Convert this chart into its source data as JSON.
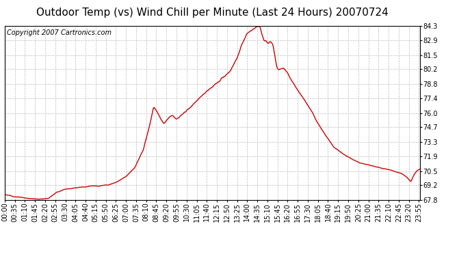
{
  "title": "Outdoor Temp (vs) Wind Chill per Minute (Last 24 Hours) 20070724",
  "copyright": "Copyright 2007 Cartronics.com",
  "line_color": "#cc0000",
  "background_color": "#ffffff",
  "grid_color": "#bbbbbb",
  "yticks": [
    67.8,
    69.2,
    70.5,
    71.9,
    73.3,
    74.7,
    76.0,
    77.4,
    78.8,
    80.2,
    81.5,
    82.9,
    84.3
  ],
  "ymin": 67.8,
  "ymax": 84.3,
  "xtick_labels": [
    "00:00",
    "00:35",
    "01:10",
    "01:45",
    "02:20",
    "02:55",
    "03:30",
    "04:05",
    "04:40",
    "05:15",
    "05:50",
    "06:25",
    "07:00",
    "07:35",
    "08:10",
    "08:45",
    "09:20",
    "09:55",
    "10:30",
    "11:05",
    "11:40",
    "12:15",
    "12:50",
    "13:25",
    "14:00",
    "14:35",
    "15:10",
    "15:45",
    "16:20",
    "16:55",
    "17:30",
    "18:05",
    "18:40",
    "19:15",
    "19:50",
    "20:25",
    "21:00",
    "21:35",
    "22:10",
    "22:45",
    "23:20",
    "23:55"
  ],
  "title_fontsize": 11,
  "copyright_fontsize": 7,
  "tick_fontsize": 7,
  "line_width": 1.0
}
